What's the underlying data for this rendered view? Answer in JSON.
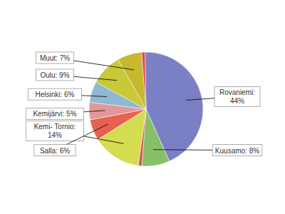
{
  "chart_data": {
    "type": "pie",
    "categories": [
      "Rovaniemi:\n44%",
      "Kuusamo: 8%",
      null,
      "Kemi- Tornio:\n14%",
      "Salla: 6%",
      "Kemijärvi: 5%",
      "Helsinki: 6%",
      "Oulu: 9%",
      "Muut: 7%",
      null
    ],
    "values": [
      44,
      8,
      1,
      14,
      6,
      5,
      6,
      9,
      7,
      1
    ],
    "colors": [
      "#7b7fc4",
      "#88c06a",
      "#e05050",
      "#d4dc50",
      "#e86050",
      "#e09898",
      "#90b8d4",
      "#c8c838",
      "#c8b830",
      "#e05050"
    ]
  }
}
